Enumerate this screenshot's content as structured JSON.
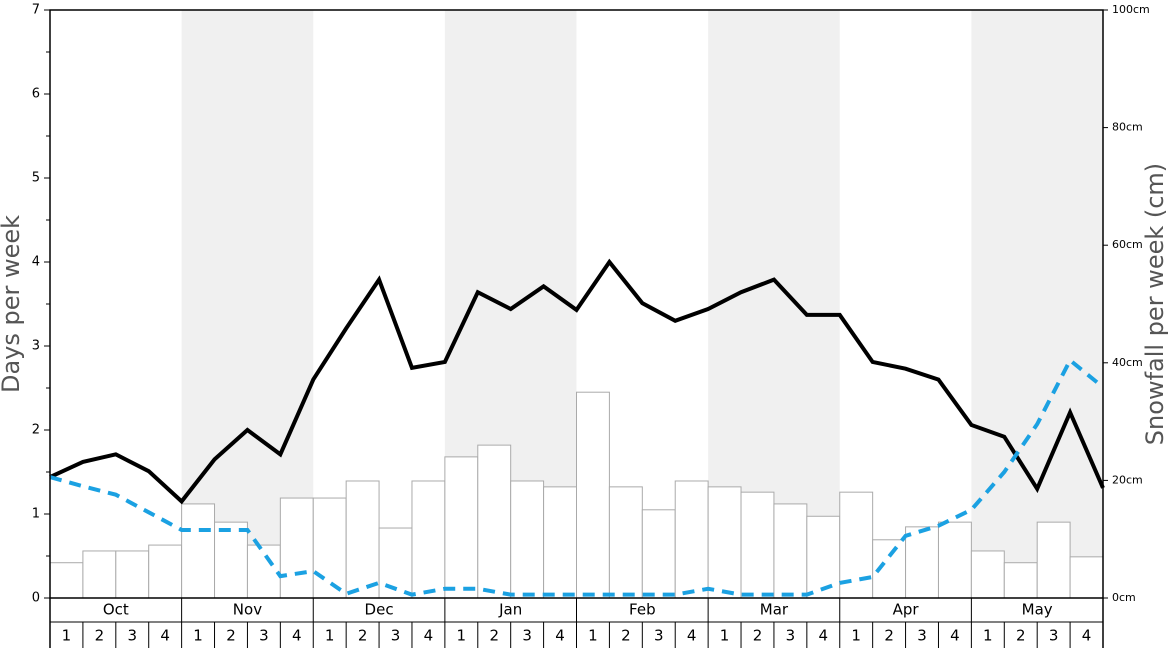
{
  "chart_data": {
    "type": "bar-line",
    "ylabel": "Days per week",
    "y2label": "Snowfall per week (cm)",
    "months": [
      "Oct",
      "Nov",
      "Dec",
      "Jan",
      "Feb",
      "Mar",
      "Apr",
      "May"
    ],
    "weeks": [
      1,
      2,
      3,
      4
    ],
    "ylim": [
      0,
      7
    ],
    "yticks": [
      0,
      1,
      2,
      3,
      4,
      5,
      6,
      7
    ],
    "y2lim": [
      0,
      100
    ],
    "y2ticks": [
      {
        "value": 0,
        "label": "0cm"
      },
      {
        "value": 20,
        "label": "20cm"
      },
      {
        "value": 40,
        "label": "40cm"
      },
      {
        "value": 60,
        "label": "60cm"
      },
      {
        "value": 80,
        "label": "80cm"
      },
      {
        "value": 100,
        "label": "100cm"
      }
    ],
    "series": [
      {
        "type": "bar",
        "axis": "y2",
        "color": "#ffffff",
        "values": [
          6.0,
          8.0,
          8.0,
          9.0,
          16.0,
          12.9,
          9.0,
          17.0,
          17.0,
          19.9,
          11.9,
          19.9,
          24.0,
          26.0,
          19.9,
          18.9,
          35.0,
          18.9,
          15.0,
          19.9,
          18.9,
          18.0,
          16.0,
          13.9,
          18.0,
          9.9,
          12.1,
          12.9,
          8.0,
          6.0,
          12.9,
          7.0
        ]
      },
      {
        "type": "line",
        "color": "#000000",
        "values": [
          1.44,
          1.62,
          1.71,
          1.51,
          1.15,
          1.65,
          2.0,
          1.71,
          2.6,
          3.21,
          3.79,
          2.74,
          2.81,
          3.64,
          3.44,
          3.71,
          3.43,
          4.0,
          3.51,
          3.3,
          3.44,
          3.64,
          3.79,
          3.37,
          3.37,
          2.81,
          2.73,
          2.6,
          2.06,
          1.92,
          1.3,
          2.21,
          1.31
        ]
      },
      {
        "type": "line",
        "dashed": true,
        "color": "#1ba1e2",
        "values": [
          1.44,
          1.33,
          1.23,
          1.02,
          0.81,
          0.81,
          0.81,
          0.26,
          0.32,
          0.05,
          0.18,
          0.04,
          0.11,
          0.11,
          0.04,
          0.04,
          0.04,
          0.04,
          0.04,
          0.04,
          0.11,
          0.04,
          0.04,
          0.04,
          0.18,
          0.25,
          0.74,
          0.86,
          1.05,
          1.5,
          2.07,
          2.83,
          2.51
        ]
      }
    ]
  }
}
